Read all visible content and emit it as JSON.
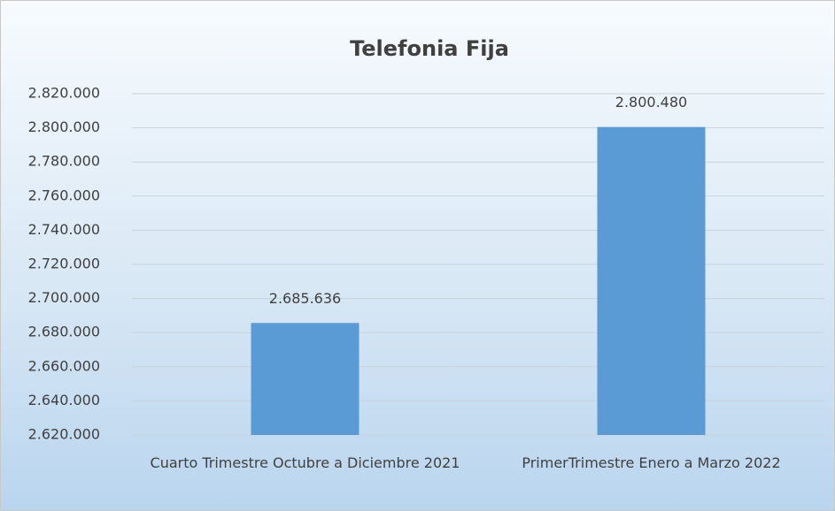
{
  "chart_data": {
    "type": "bar",
    "title": "Telefonia Fija",
    "categories": [
      "Cuarto Trimestre Octubre a Diciembre 2021",
      "PrimerTrimestre Enero a Marzo 2022"
    ],
    "values": [
      2685636,
      2800480
    ],
    "value_labels": [
      "2.685.636",
      "2.800.480"
    ],
    "color": "#5b9bd5",
    "ylim": [
      2620000,
      2820000
    ],
    "yticks": [
      {
        "value": 2620000,
        "label": "2.620.000"
      },
      {
        "value": 2640000,
        "label": "2.640.000"
      },
      {
        "value": 2660000,
        "label": "2.660.000"
      },
      {
        "value": 2680000,
        "label": "2.680.000"
      },
      {
        "value": 2700000,
        "label": "2.700.000"
      },
      {
        "value": 2720000,
        "label": "2.720.000"
      },
      {
        "value": 2740000,
        "label": "2.740.000"
      },
      {
        "value": 2760000,
        "label": "2.760.000"
      },
      {
        "value": 2780000,
        "label": "2.780.000"
      },
      {
        "value": 2800000,
        "label": "2.800.000"
      },
      {
        "value": 2820000,
        "label": "2.820.000"
      }
    ],
    "grid": true
  }
}
